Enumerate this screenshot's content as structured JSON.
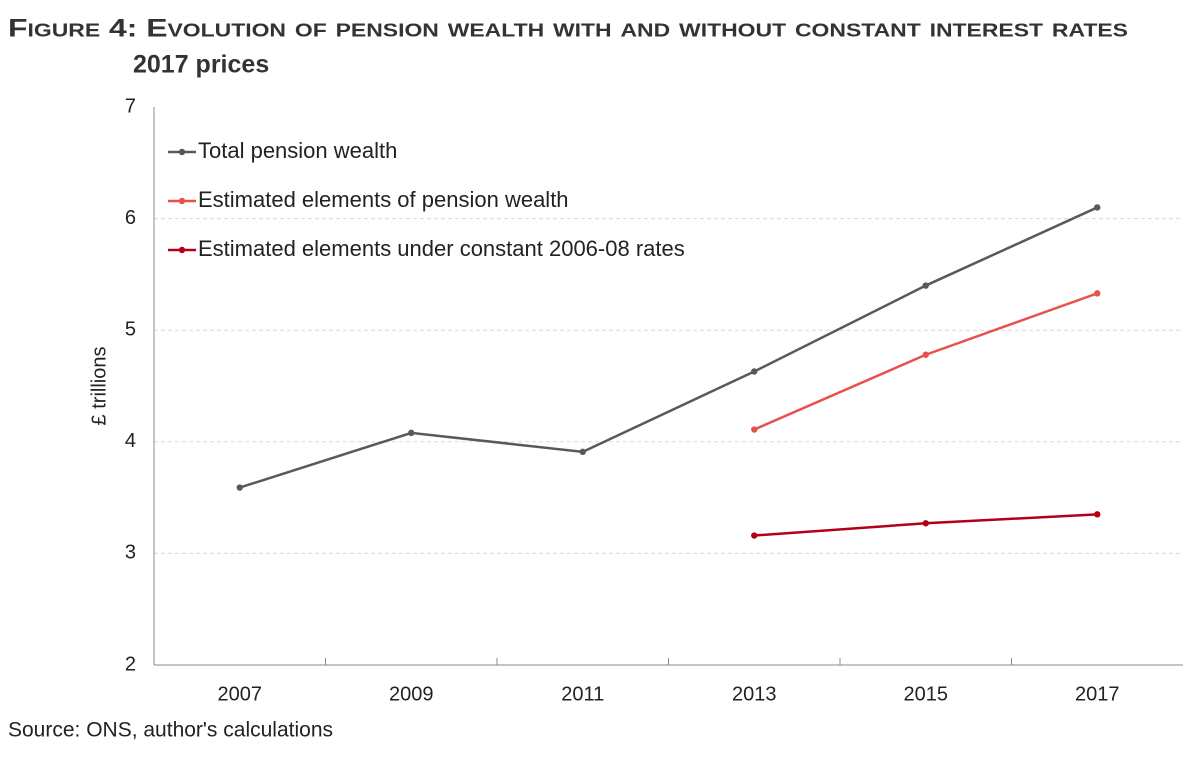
{
  "chart_data": {
    "type": "line",
    "title": "Figure 4: Evolution of pension wealth with and without constant interest rates",
    "subtitle": "2017 prices",
    "y_label": "£ trillions",
    "source": "Source: ONS, author's calculations",
    "categories": [
      "2007",
      "2009",
      "2011",
      "2013",
      "2015",
      "2017"
    ],
    "series": [
      {
        "name": "Total pension wealth",
        "color": "#595959",
        "values": [
          3.59,
          4.08,
          3.91,
          4.63,
          5.4,
          6.1
        ]
      },
      {
        "name": "Estimated elements of pension wealth",
        "color": "#e8504a",
        "values": [
          null,
          null,
          null,
          4.11,
          4.78,
          5.33
        ]
      },
      {
        "name": "Estimated elements under constant 2006-08 rates",
        "color": "#b30018",
        "values": [
          null,
          null,
          null,
          3.16,
          3.27,
          3.35
        ]
      }
    ],
    "ylim": [
      2,
      7
    ],
    "yticks": [
      2,
      3,
      4,
      5,
      6,
      7
    ],
    "grid": true,
    "legend": "top-left"
  }
}
